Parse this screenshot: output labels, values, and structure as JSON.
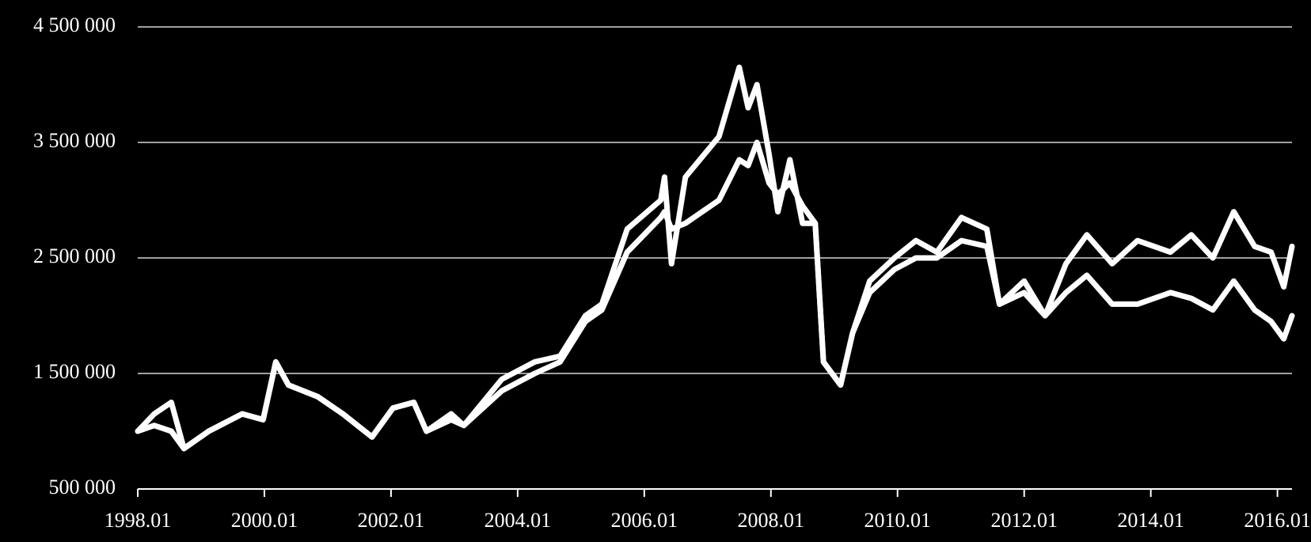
{
  "chart_data": {
    "type": "line",
    "x": [
      1998.0,
      1998.26,
      1998.53,
      1998.73,
      1999.12,
      1999.65,
      1999.98,
      2000.18,
      2000.38,
      2000.84,
      2001.24,
      2001.7,
      2002.03,
      2002.36,
      2002.56,
      2002.95,
      2003.15,
      2003.75,
      2004.27,
      2004.67,
      2005.07,
      2005.33,
      2005.73,
      2006.26,
      2006.32,
      2006.43,
      2006.65,
      2007.18,
      2007.5,
      2007.64,
      2007.78,
      2007.97,
      2008.11,
      2008.3,
      2008.5,
      2008.7,
      2008.83,
      2009.1,
      2009.29,
      2009.56,
      2009.95,
      2010.29,
      2010.62,
      2011.01,
      2011.41,
      2011.61,
      2012.0,
      2012.33,
      2012.66,
      2012.99,
      2013.39,
      2013.79,
      2014.31,
      2014.64,
      2014.98,
      2015.31,
      2015.64,
      2015.9,
      2016.1,
      2016.23
    ],
    "series": [
      {
        "color": "#ffffff",
        "values": [
          1000000,
          1150000,
          1250000,
          850000,
          1000000,
          1150000,
          1100000,
          1600000,
          1400000,
          1300000,
          1150000,
          950000,
          1200000,
          1250000,
          1000000,
          1150000,
          1050000,
          1450000,
          1600000,
          1650000,
          2000000,
          2100000,
          2750000,
          3000000,
          3200000,
          2450000,
          3200000,
          3550000,
          4150000,
          3800000,
          4000000,
          3400000,
          2900000,
          3350000,
          2800000,
          2800000,
          1600000,
          1400000,
          1850000,
          2300000,
          2500000,
          2650000,
          2550000,
          2850000,
          2750000,
          2100000,
          2300000,
          2000000,
          2450000,
          2700000,
          2450000,
          2650000,
          2550000,
          2700000,
          2500000,
          2900000,
          2600000,
          2550000,
          2250000,
          2600000
        ]
      },
      {
        "color": "#ffffff",
        "values": [
          1000000,
          1050000,
          1000000,
          850000,
          1000000,
          1150000,
          1100000,
          1600000,
          1400000,
          1300000,
          1150000,
          950000,
          1200000,
          1250000,
          1000000,
          1100000,
          1050000,
          1350000,
          1500000,
          1600000,
          1950000,
          2050000,
          2550000,
          2850000,
          2900000,
          2750000,
          2800000,
          3000000,
          3350000,
          3300000,
          3500000,
          3150000,
          3050000,
          3150000,
          2950000,
          2800000,
          1600000,
          1400000,
          1850000,
          2200000,
          2400000,
          2500000,
          2500000,
          2650000,
          2600000,
          2100000,
          2200000,
          2000000,
          2200000,
          2350000,
          2100000,
          2100000,
          2200000,
          2150000,
          2050000,
          2300000,
          2050000,
          1950000,
          1800000,
          2000000
        ]
      }
    ],
    "xlim": [
      1998.0,
      2016.23
    ],
    "xticks": [
      {
        "value": 1998.0,
        "label": "1998.01"
      },
      {
        "value": 2000.0,
        "label": "2000.01"
      },
      {
        "value": 2002.0,
        "label": "2002.01"
      },
      {
        "value": 2004.0,
        "label": "2004.01"
      },
      {
        "value": 2006.0,
        "label": "2006.01"
      },
      {
        "value": 2008.0,
        "label": "2008.01"
      },
      {
        "value": 2010.0,
        "label": "2010.01"
      },
      {
        "value": 2012.0,
        "label": "2012.01"
      },
      {
        "value": 2014.0,
        "label": "2014.01"
      },
      {
        "value": 2016.0,
        "label": "2016.01"
      }
    ],
    "ylim": [
      500000,
      4500000
    ],
    "yticks": [
      {
        "value": 500000,
        "label": "500 000"
      },
      {
        "value": 1500000,
        "label": "1 500 000"
      },
      {
        "value": 2500000,
        "label": "2 500 000"
      },
      {
        "value": 3500000,
        "label": "3 500 000"
      },
      {
        "value": 4500000,
        "label": "4 500 000"
      }
    ],
    "grid": true
  }
}
